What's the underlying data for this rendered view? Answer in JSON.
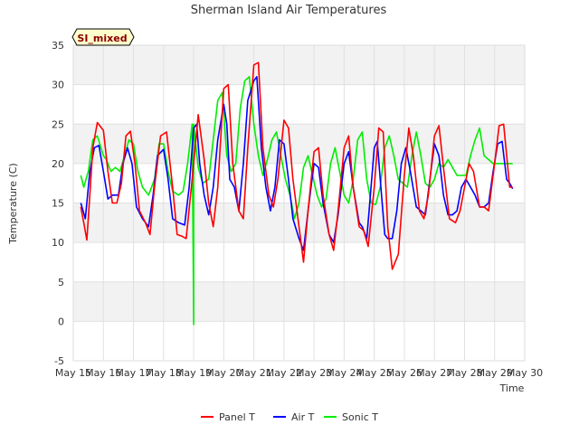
{
  "chart_data": {
    "type": "line",
    "title": "Sherman Island Air Temperatures",
    "xlabel": "Time",
    "ylabel": "Temperature (C)",
    "badge": "SI_mixed",
    "ylim": [
      -5,
      35
    ],
    "xlim": [
      15,
      30
    ],
    "yticks": [
      -5,
      0,
      5,
      10,
      15,
      20,
      25,
      30,
      35
    ],
    "xticks": [
      {
        "value": 15,
        "label": "May 15"
      },
      {
        "value": 16,
        "label": "May 16"
      },
      {
        "value": 17,
        "label": "May 17"
      },
      {
        "value": 18,
        "label": "May 18"
      },
      {
        "value": 19,
        "label": "May 19"
      },
      {
        "value": 20,
        "label": "May 20"
      },
      {
        "value": 21,
        "label": "May 21"
      },
      {
        "value": 22,
        "label": "May 22"
      },
      {
        "value": 23,
        "label": "May 23"
      },
      {
        "value": 24,
        "label": "May 24"
      },
      {
        "value": 25,
        "label": "May 25"
      },
      {
        "value": 26,
        "label": "May 26"
      },
      {
        "value": 27,
        "label": "May 27"
      },
      {
        "value": 28,
        "label": "May 28"
      },
      {
        "value": 29,
        "label": "May 29"
      },
      {
        "value": 30,
        "label": "May 30"
      }
    ],
    "grid": true,
    "legend_position": "bottom",
    "series": [
      {
        "name": "Panel T",
        "color": "#ff0000",
        "x": [
          15.25,
          15.35,
          15.45,
          15.55,
          15.65,
          15.8,
          16.0,
          16.15,
          16.3,
          16.45,
          16.6,
          16.75,
          16.9,
          17.05,
          17.2,
          17.4,
          17.55,
          17.7,
          17.9,
          18.1,
          18.3,
          18.45,
          18.6,
          18.75,
          18.95,
          19.15,
          19.35,
          19.5,
          19.65,
          19.8,
          20.0,
          20.15,
          20.3,
          20.5,
          20.65,
          20.8,
          21.0,
          21.15,
          21.3,
          21.5,
          21.65,
          21.8,
          22.0,
          22.15,
          22.3,
          22.5,
          22.65,
          22.8,
          23.0,
          23.15,
          23.3,
          23.5,
          23.65,
          23.8,
          24.0,
          24.15,
          24.3,
          24.5,
          24.65,
          24.8,
          25.0,
          25.15,
          25.3,
          25.45,
          25.6,
          25.8,
          26.0,
          26.15,
          26.3,
          26.5,
          26.65,
          26.8,
          27.0,
          27.15,
          27.3,
          27.5,
          27.7,
          27.85,
          28.0,
          28.15,
          28.3,
          28.5,
          28.65,
          28.8,
          29.0,
          29.15,
          29.3,
          29.5,
          29.6
        ],
        "y": [
          14.5,
          12.5,
          10.3,
          16.0,
          22.0,
          25.2,
          24.2,
          19.0,
          15.0,
          15.0,
          17.5,
          23.5,
          24.1,
          20.0,
          14.0,
          12.5,
          11.0,
          17.0,
          23.5,
          24.0,
          17.0,
          11.0,
          10.8,
          10.5,
          18.0,
          26.2,
          20.5,
          15.0,
          12.0,
          17.0,
          29.5,
          30.0,
          20.0,
          14.0,
          13.0,
          22.0,
          32.5,
          32.8,
          22.0,
          16.0,
          14.5,
          18.0,
          25.5,
          24.5,
          18.0,
          12.0,
          7.5,
          14.0,
          21.5,
          22.0,
          16.0,
          11.0,
          9.0,
          14.0,
          22.0,
          23.5,
          17.0,
          12.0,
          11.5,
          9.5,
          17.0,
          24.5,
          24.0,
          12.0,
          6.6,
          8.5,
          18.5,
          24.5,
          21.0,
          14.0,
          13.0,
          16.0,
          23.5,
          24.8,
          19.5,
          13.0,
          12.5,
          14.0,
          17.0,
          20.0,
          19.0,
          14.5,
          14.5,
          14.0,
          20.0,
          24.8,
          25.0,
          17.0,
          17.0
        ]
      },
      {
        "name": "Air T",
        "color": "#0000ff",
        "x": [
          15.25,
          15.4,
          15.55,
          15.7,
          15.85,
          16.0,
          16.15,
          16.3,
          16.5,
          16.65,
          16.8,
          16.95,
          17.1,
          17.3,
          17.5,
          17.65,
          17.8,
          18.0,
          18.15,
          18.3,
          18.5,
          18.7,
          18.85,
          19.0,
          19.1,
          19.2,
          19.35,
          19.5,
          19.65,
          19.8,
          20.0,
          20.1,
          20.2,
          20.35,
          20.5,
          20.65,
          20.8,
          21.0,
          21.1,
          21.25,
          21.4,
          21.55,
          21.7,
          21.85,
          22.0,
          22.15,
          22.3,
          22.5,
          22.65,
          22.8,
          23.0,
          23.15,
          23.3,
          23.5,
          23.65,
          23.8,
          24.0,
          24.15,
          24.3,
          24.5,
          24.6,
          24.75,
          24.85,
          25.0,
          25.1,
          25.2,
          25.35,
          25.45,
          25.6,
          25.75,
          25.9,
          26.05,
          26.2,
          26.4,
          26.55,
          26.7,
          26.85,
          27.0,
          27.15,
          27.3,
          27.45,
          27.6,
          27.75,
          27.9,
          28.05,
          28.2,
          28.35,
          28.5,
          28.65,
          28.8,
          28.95,
          29.1,
          29.25,
          29.4,
          29.5,
          29.6
        ],
        "y": [
          15.0,
          13.0,
          19.0,
          22.0,
          22.3,
          19.0,
          15.5,
          16.0,
          16.0,
          20.0,
          22.0,
          20.0,
          14.5,
          13.0,
          12.0,
          16.0,
          21.0,
          21.8,
          18.0,
          13.0,
          12.5,
          12.2,
          17.0,
          24.5,
          25.0,
          20.0,
          16.0,
          13.5,
          17.0,
          23.0,
          27.5,
          25.0,
          18.0,
          17.0,
          14.0,
          20.0,
          28.0,
          30.5,
          31.0,
          22.0,
          17.0,
          14.0,
          17.0,
          23.0,
          22.5,
          18.0,
          13.0,
          10.5,
          9.0,
          14.0,
          20.0,
          19.5,
          15.0,
          11.0,
          10.0,
          13.5,
          20.0,
          21.5,
          17.0,
          12.5,
          12.0,
          10.5,
          15.0,
          22.0,
          22.8,
          18.0,
          11.0,
          10.5,
          10.5,
          14.0,
          20.0,
          22.0,
          19.0,
          14.5,
          14.0,
          13.5,
          18.0,
          22.5,
          21.0,
          16.0,
          13.5,
          13.5,
          14.0,
          17.0,
          18.0,
          17.0,
          16.0,
          14.5,
          14.5,
          15.0,
          19.0,
          22.5,
          22.8,
          18.0,
          17.5,
          16.8
        ]
      },
      {
        "name": "Sonic T",
        "color": "#00ee00",
        "x": [
          15.25,
          15.35,
          15.5,
          15.65,
          15.8,
          16.0,
          16.1,
          16.25,
          16.4,
          16.55,
          16.7,
          16.85,
          17.0,
          17.15,
          17.3,
          17.5,
          17.7,
          17.85,
          18.0,
          18.15,
          18.3,
          18.5,
          18.65,
          18.8,
          18.95,
          19.0,
          19.0,
          19.05,
          19.15,
          19.3,
          19.5,
          19.65,
          19.8,
          19.95,
          20.1,
          20.25,
          20.4,
          20.55,
          20.7,
          20.85,
          21.0,
          21.15,
          21.3,
          21.45,
          21.6,
          21.75,
          21.9,
          22.05,
          22.2,
          22.35,
          22.5,
          22.65,
          22.8,
          22.95,
          23.1,
          23.25,
          23.4,
          23.55,
          23.7,
          23.85,
          24.0,
          24.15,
          24.3,
          24.45,
          24.6,
          24.75,
          24.9,
          25.05,
          25.2,
          25.35,
          25.5,
          25.65,
          25.8,
          25.95,
          26.1,
          26.25,
          26.4,
          26.55,
          26.7,
          26.85,
          27.0,
          27.15,
          27.3,
          27.45,
          27.6,
          27.75,
          27.9,
          28.05,
          28.2,
          28.35,
          28.5,
          28.65,
          28.8,
          28.95,
          29.1,
          29.25,
          29.4,
          29.5,
          29.6
        ],
        "y": [
          18.5,
          17.0,
          19.0,
          23.0,
          23.5,
          21.0,
          20.5,
          19.0,
          19.5,
          19.0,
          21.0,
          23.0,
          22.5,
          19.0,
          17.0,
          16.0,
          18.0,
          22.5,
          22.5,
          19.0,
          16.5,
          16.0,
          16.5,
          20.0,
          25.0,
          -0.4,
          25.0,
          23.0,
          19.5,
          17.5,
          18.0,
          23.0,
          28.0,
          29.0,
          21.0,
          19.0,
          20.0,
          27.0,
          30.5,
          31.0,
          25.0,
          21.0,
          18.5,
          20.5,
          23.0,
          24.0,
          21.0,
          18.0,
          16.0,
          13.0,
          15.0,
          19.5,
          21.0,
          18.5,
          16.0,
          14.5,
          15.5,
          20.0,
          22.0,
          19.0,
          16.0,
          15.0,
          18.0,
          23.0,
          24.0,
          18.0,
          15.0,
          14.8,
          17.0,
          22.0,
          23.5,
          21.0,
          18.0,
          17.5,
          17.0,
          21.0,
          24.0,
          21.0,
          17.5,
          17.0,
          18.0,
          20.0,
          19.5,
          20.5,
          19.5,
          18.5,
          18.5,
          18.5,
          21.0,
          23.0,
          24.5,
          21.0,
          20.5,
          20.0,
          20.0,
          20.0,
          20.0,
          20.0,
          20.0
        ]
      }
    ]
  }
}
